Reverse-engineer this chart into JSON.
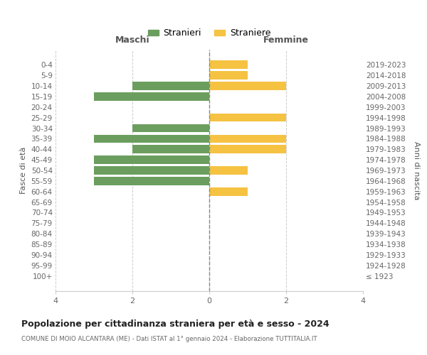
{
  "age_groups": [
    "0-4",
    "5-9",
    "10-14",
    "15-19",
    "20-24",
    "25-29",
    "30-34",
    "35-39",
    "40-44",
    "45-49",
    "50-54",
    "55-59",
    "60-64",
    "65-69",
    "70-74",
    "75-79",
    "80-84",
    "85-89",
    "90-94",
    "95-99",
    "100+"
  ],
  "birth_years": [
    "2019-2023",
    "2014-2018",
    "2009-2013",
    "2004-2008",
    "1999-2003",
    "1994-1998",
    "1989-1993",
    "1984-1988",
    "1979-1983",
    "1974-1978",
    "1969-1973",
    "1964-1968",
    "1959-1963",
    "1954-1958",
    "1949-1953",
    "1944-1948",
    "1939-1943",
    "1934-1938",
    "1929-1933",
    "1924-1928",
    "≤ 1923"
  ],
  "maschi": [
    0,
    0,
    2,
    3,
    0,
    0,
    2,
    3,
    2,
    3,
    3,
    3,
    0,
    0,
    0,
    0,
    0,
    0,
    0,
    0,
    0
  ],
  "femmine": [
    1,
    1,
    2,
    0,
    0,
    2,
    0,
    2,
    2,
    0,
    1,
    0,
    1,
    0,
    0,
    0,
    0,
    0,
    0,
    0,
    0
  ],
  "maschi_color": "#6b9e5e",
  "femmine_color": "#f5c242",
  "title": "Popolazione per cittadinanza straniera per età e sesso - 2024",
  "subtitle": "COMUNE DI MOIO ALCANTARA (ME) - Dati ISTAT al 1° gennaio 2024 - Elaborazione TUTTITALIA.IT",
  "xlabel_left": "Maschi",
  "xlabel_right": "Femmine",
  "ylabel_left": "Fasce di età",
  "ylabel_right": "Anni di nascita",
  "legend_maschi": "Stranieri",
  "legend_femmine": "Straniere",
  "xlim": 4,
  "background_color": "#ffffff",
  "grid_color": "#cccccc"
}
